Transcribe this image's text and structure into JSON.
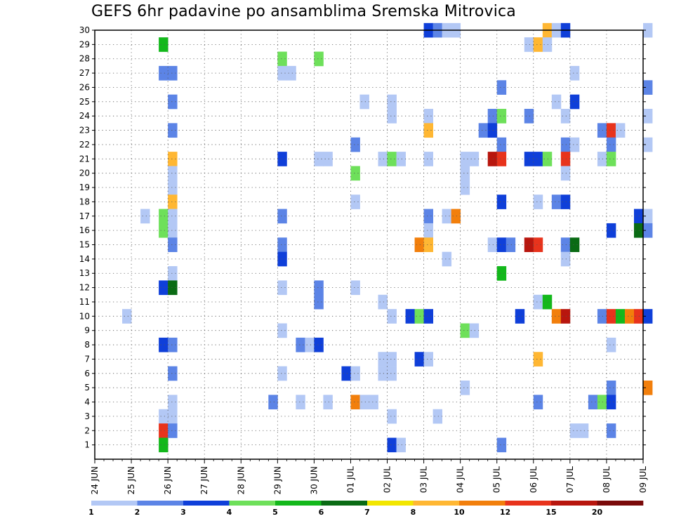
{
  "title": "GEFS 6hr padavine po ansamblima Sremska Mitrovica",
  "colors": {
    "c1": "#b3c8f5",
    "c2": "#5c84e6",
    "c3": "#0f3fd9",
    "c4": "#6ee05a",
    "c5": "#13b81b",
    "c6": "#0a6b14",
    "c7": "#f2e600",
    "c8": "#ffb733",
    "c10": "#f27f0c",
    "c12": "#e8331c",
    "c15": "#b8160e",
    "c20": "#7a0a0a"
  },
  "chart_data": {
    "type": "heatmap",
    "title": "GEFS 6hr padavine po ansamblima Sremska Mitrovica",
    "x_ticks": [
      "24 JUN",
      "25 JUN",
      "26 JUN",
      "27 JUN",
      "28 JUN",
      "29 JUN",
      "30 JUN",
      "01 JUL",
      "02 JUL",
      "03 JUL",
      "04 JUL",
      "05 JUL",
      "06 JUL",
      "07 JUL",
      "08 JUL",
      "09 JUL"
    ],
    "y_ticks": [
      "1",
      "2",
      "3",
      "4",
      "5",
      "6",
      "7",
      "8",
      "9",
      "10",
      "11",
      "12",
      "13",
      "14",
      "15",
      "16",
      "17",
      "18",
      "19",
      "20",
      "21",
      "22",
      "23",
      "24",
      "25",
      "26",
      "27",
      "28",
      "29",
      "30"
    ],
    "x_range_days": [
      0,
      15
    ],
    "y_range": [
      0,
      30
    ],
    "grid": true,
    "colorbar": {
      "labels": [
        "1",
        "2",
        "3",
        "4",
        "5",
        "6",
        "7",
        "8",
        "10",
        "12",
        "15",
        "20"
      ],
      "color_keys": [
        "c1",
        "c2",
        "c3",
        "c4",
        "c5",
        "c6",
        "c7",
        "c8",
        "c10",
        "c12",
        "c15",
        "c20"
      ]
    },
    "cells": [
      [
        30,
        9.0,
        "c3"
      ],
      [
        30,
        9.25,
        "c2"
      ],
      [
        30,
        9.5,
        "c1"
      ],
      [
        30,
        9.75,
        "c1"
      ],
      [
        30,
        12.25,
        "c8"
      ],
      [
        30,
        12.5,
        "c1"
      ],
      [
        30,
        12.75,
        "c3"
      ],
      [
        30,
        15.0,
        "c1"
      ],
      [
        29,
        1.75,
        "c5"
      ],
      [
        29,
        11.75,
        "c1"
      ],
      [
        29,
        12.0,
        "c8"
      ],
      [
        29,
        12.25,
        "c1"
      ],
      [
        28,
        5.0,
        "c4"
      ],
      [
        28,
        6.0,
        "c4"
      ],
      [
        27,
        1.75,
        "c2"
      ],
      [
        27,
        2.0,
        "c2"
      ],
      [
        27,
        5.0,
        "c1"
      ],
      [
        27,
        5.25,
        "c1"
      ],
      [
        27,
        13.0,
        "c1"
      ],
      [
        26,
        11.0,
        "c2"
      ],
      [
        26,
        15.0,
        "c2"
      ],
      [
        25,
        2.0,
        "c2"
      ],
      [
        25,
        7.25,
        "c1"
      ],
      [
        25,
        8.0,
        "c1"
      ],
      [
        25,
        12.5,
        "c1"
      ],
      [
        25,
        13.0,
        "c3"
      ],
      [
        24,
        8.0,
        "c1"
      ],
      [
        24,
        9.0,
        "c1"
      ],
      [
        24,
        10.75,
        "c2"
      ],
      [
        24,
        11.0,
        "c4"
      ],
      [
        24,
        11.75,
        "c2"
      ],
      [
        24,
        12.75,
        "c1"
      ],
      [
        24,
        15.0,
        "c1"
      ],
      [
        23,
        2.0,
        "c2"
      ],
      [
        23,
        9.0,
        "c8"
      ],
      [
        23,
        10.5,
        "c2"
      ],
      [
        23,
        10.75,
        "c3"
      ],
      [
        23,
        13.75,
        "c2"
      ],
      [
        23,
        14.0,
        "c12"
      ],
      [
        23,
        14.25,
        "c1"
      ],
      [
        22,
        7.0,
        "c2"
      ],
      [
        22,
        11.0,
        "c2"
      ],
      [
        22,
        12.75,
        "c2"
      ],
      [
        22,
        13.0,
        "c1"
      ],
      [
        22,
        14.0,
        "c2"
      ],
      [
        22,
        15.0,
        "c1"
      ],
      [
        21,
        2.0,
        "c8"
      ],
      [
        21,
        5.0,
        "c3"
      ],
      [
        21,
        6.0,
        "c1"
      ],
      [
        21,
        6.25,
        "c1"
      ],
      [
        21,
        7.75,
        "c1"
      ],
      [
        21,
        8.0,
        "c4"
      ],
      [
        21,
        8.25,
        "c1"
      ],
      [
        21,
        9.0,
        "c1"
      ],
      [
        21,
        10.0,
        "c1"
      ],
      [
        21,
        10.25,
        "c1"
      ],
      [
        21,
        10.75,
        "c15"
      ],
      [
        21,
        11.0,
        "c12"
      ],
      [
        21,
        11.75,
        "c3"
      ],
      [
        21,
        12.0,
        "c3"
      ],
      [
        21,
        12.25,
        "c4"
      ],
      [
        21,
        12.75,
        "c12"
      ],
      [
        21,
        13.75,
        "c1"
      ],
      [
        21,
        14.0,
        "c4"
      ],
      [
        20,
        2.0,
        "c1"
      ],
      [
        20,
        7.0,
        "c4"
      ],
      [
        20,
        10.0,
        "c1"
      ],
      [
        20,
        12.75,
        "c1"
      ],
      [
        19,
        2.0,
        "c1"
      ],
      [
        19,
        10.0,
        "c1"
      ],
      [
        18,
        2.0,
        "c8"
      ],
      [
        18,
        7.0,
        "c1"
      ],
      [
        18,
        11.0,
        "c3"
      ],
      [
        18,
        12.0,
        "c1"
      ],
      [
        18,
        12.5,
        "c2"
      ],
      [
        18,
        12.75,
        "c3"
      ],
      [
        17,
        1.25,
        "c1"
      ],
      [
        17,
        1.75,
        "c4"
      ],
      [
        17,
        2.0,
        "c1"
      ],
      [
        17,
        5.0,
        "c2"
      ],
      [
        17,
        9.0,
        "c2"
      ],
      [
        17,
        9.5,
        "c1"
      ],
      [
        17,
        9.75,
        "c10"
      ],
      [
        17,
        14.75,
        "c3"
      ],
      [
        17,
        15.0,
        "c1"
      ],
      [
        16,
        1.75,
        "c4"
      ],
      [
        16,
        2.0,
        "c1"
      ],
      [
        16,
        9.0,
        "c1"
      ],
      [
        16,
        14.0,
        "c3"
      ],
      [
        16,
        14.75,
        "c6"
      ],
      [
        16,
        15.0,
        "c2"
      ],
      [
        15,
        2.0,
        "c2"
      ],
      [
        15,
        5.0,
        "c2"
      ],
      [
        15,
        8.75,
        "c10"
      ],
      [
        15,
        9.0,
        "c8"
      ],
      [
        15,
        10.75,
        "c1"
      ],
      [
        15,
        11.0,
        "c3"
      ],
      [
        15,
        11.25,
        "c2"
      ],
      [
        15,
        11.75,
        "c15"
      ],
      [
        15,
        12.0,
        "c12"
      ],
      [
        15,
        12.75,
        "c2"
      ],
      [
        15,
        13.0,
        "c6"
      ],
      [
        14,
        5.0,
        "c3"
      ],
      [
        14,
        9.5,
        "c1"
      ],
      [
        14,
        12.75,
        "c1"
      ],
      [
        13,
        2.0,
        "c1"
      ],
      [
        13,
        11.0,
        "c5"
      ],
      [
        12,
        1.75,
        "c3"
      ],
      [
        12,
        2.0,
        "c6"
      ],
      [
        12,
        5.0,
        "c1"
      ],
      [
        12,
        6.0,
        "c2"
      ],
      [
        12,
        7.0,
        "c1"
      ],
      [
        11,
        6.0,
        "c2"
      ],
      [
        11,
        7.75,
        "c1"
      ],
      [
        11,
        12.0,
        "c1"
      ],
      [
        11,
        12.25,
        "c5"
      ],
      [
        10,
        0.75,
        "c1"
      ],
      [
        10,
        8.0,
        "c1"
      ],
      [
        10,
        8.5,
        "c3"
      ],
      [
        10,
        8.75,
        "c4"
      ],
      [
        10,
        9.0,
        "c3"
      ],
      [
        10,
        11.5,
        "c3"
      ],
      [
        10,
        12.5,
        "c10"
      ],
      [
        10,
        12.75,
        "c15"
      ],
      [
        10,
        13.75,
        "c2"
      ],
      [
        10,
        14.0,
        "c12"
      ],
      [
        10,
        14.25,
        "c5"
      ],
      [
        10,
        14.5,
        "c10"
      ],
      [
        10,
        14.75,
        "c12"
      ],
      [
        10,
        15.0,
        "c3"
      ],
      [
        9,
        5.0,
        "c1"
      ],
      [
        9,
        10.0,
        "c4"
      ],
      [
        9,
        10.25,
        "c1"
      ],
      [
        8,
        1.75,
        "c3"
      ],
      [
        8,
        2.0,
        "c2"
      ],
      [
        8,
        5.5,
        "c2"
      ],
      [
        8,
        5.75,
        "c1"
      ],
      [
        8,
        6.0,
        "c3"
      ],
      [
        8,
        14.0,
        "c1"
      ],
      [
        7,
        7.75,
        "c1"
      ],
      [
        7,
        8.0,
        "c1"
      ],
      [
        7,
        8.75,
        "c3"
      ],
      [
        7,
        9.0,
        "c1"
      ],
      [
        7,
        12.0,
        "c8"
      ],
      [
        6,
        2.0,
        "c2"
      ],
      [
        6,
        5.0,
        "c1"
      ],
      [
        6,
        6.75,
        "c3"
      ],
      [
        6,
        7.0,
        "c1"
      ],
      [
        6,
        7.75,
        "c1"
      ],
      [
        6,
        8.0,
        "c1"
      ],
      [
        5,
        10.0,
        "c1"
      ],
      [
        5,
        14.0,
        "c2"
      ],
      [
        5,
        15.0,
        "c10"
      ],
      [
        4,
        2.0,
        "c1"
      ],
      [
        4,
        4.75,
        "c2"
      ],
      [
        4,
        5.5,
        "c1"
      ],
      [
        4,
        6.25,
        "c1"
      ],
      [
        4,
        7.0,
        "c10"
      ],
      [
        4,
        7.25,
        "c1"
      ],
      [
        4,
        7.5,
        "c1"
      ],
      [
        4,
        12.0,
        "c2"
      ],
      [
        4,
        13.5,
        "c2"
      ],
      [
        4,
        13.75,
        "c4"
      ],
      [
        4,
        14.0,
        "c3"
      ],
      [
        3,
        1.75,
        "c1"
      ],
      [
        3,
        2.0,
        "c1"
      ],
      [
        3,
        8.0,
        "c1"
      ],
      [
        3,
        9.25,
        "c1"
      ],
      [
        2,
        1.75,
        "c12"
      ],
      [
        2,
        2.0,
        "c2"
      ],
      [
        2,
        13.0,
        "c1"
      ],
      [
        2,
        13.25,
        "c1"
      ],
      [
        2,
        14.0,
        "c2"
      ],
      [
        1,
        1.75,
        "c5"
      ],
      [
        1,
        8.0,
        "c3"
      ],
      [
        1,
        8.25,
        "c1"
      ],
      [
        1,
        11.0,
        "c2"
      ]
    ]
  }
}
